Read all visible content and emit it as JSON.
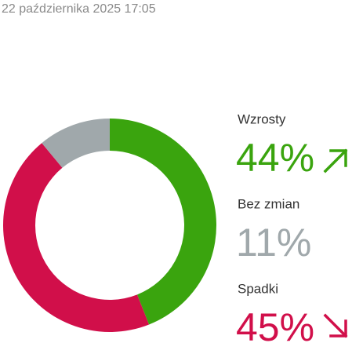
{
  "date": "22 października 2025 17:05",
  "chart_data": {
    "type": "pie",
    "donut": true,
    "categories": [
      "Wzrosty",
      "Spadki",
      "Bez zmian"
    ],
    "values": [
      44,
      45,
      11
    ],
    "value_labels": [
      "44%",
      "45%",
      "11%"
    ],
    "colors": [
      "#3aa40e",
      "#d10f4a",
      "#a0a8ab"
    ]
  }
}
